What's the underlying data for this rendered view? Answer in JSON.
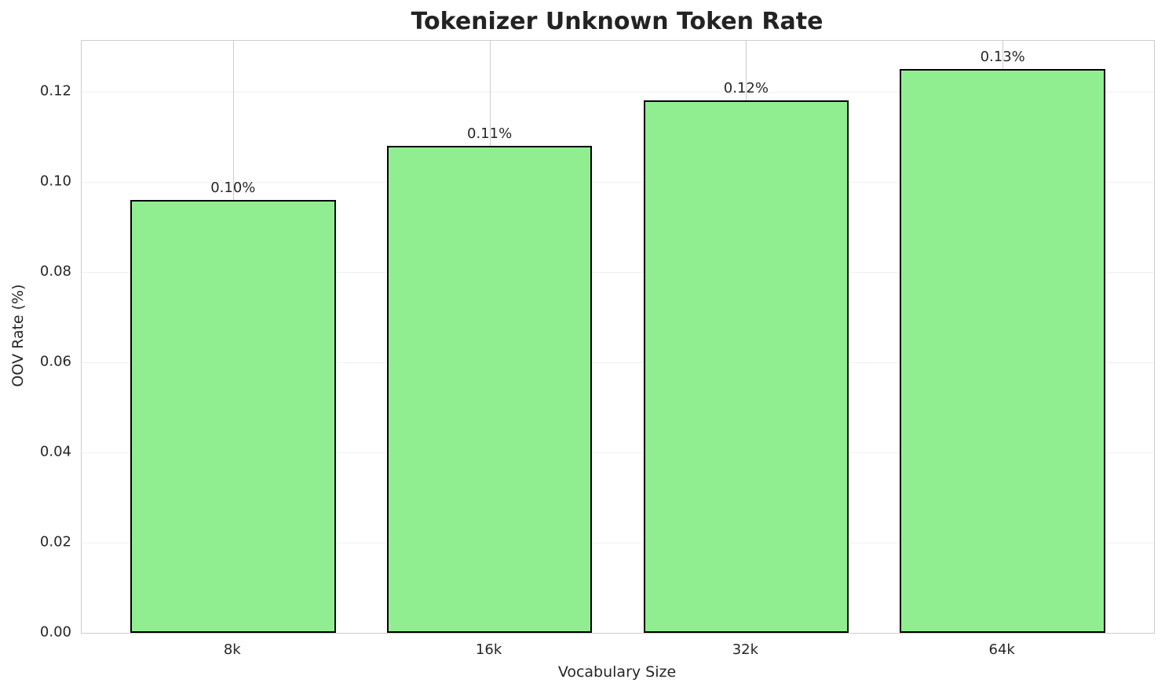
{
  "chart_data": {
    "type": "bar",
    "title": "Tokenizer Unknown Token Rate",
    "xlabel": "Vocabulary Size",
    "ylabel": "OOV Rate (%)",
    "categories": [
      "8k",
      "16k",
      "32k",
      "64k"
    ],
    "values": [
      0.096,
      0.108,
      0.118,
      0.125
    ],
    "bar_labels": [
      "0.10%",
      "0.11%",
      "0.12%",
      "0.13%"
    ],
    "y_ticks": [
      0.0,
      0.02,
      0.04,
      0.06,
      0.08,
      0.1,
      0.12
    ],
    "y_tick_labels": [
      "0.00",
      "0.02",
      "0.04",
      "0.06",
      "0.08",
      "0.10",
      "0.12"
    ],
    "ylim": [
      0,
      0.13125
    ],
    "bar_width_fraction": 0.8,
    "grid": true,
    "legend": false,
    "colors": {
      "bar_fill": "#90EE90",
      "bar_edge": "#000000",
      "grid_horizontal": "#f0f0f0",
      "grid_vertical": "#cccccc",
      "spine": "#cdcdcd",
      "text": "#262626",
      "background": "#ffffff"
    }
  }
}
